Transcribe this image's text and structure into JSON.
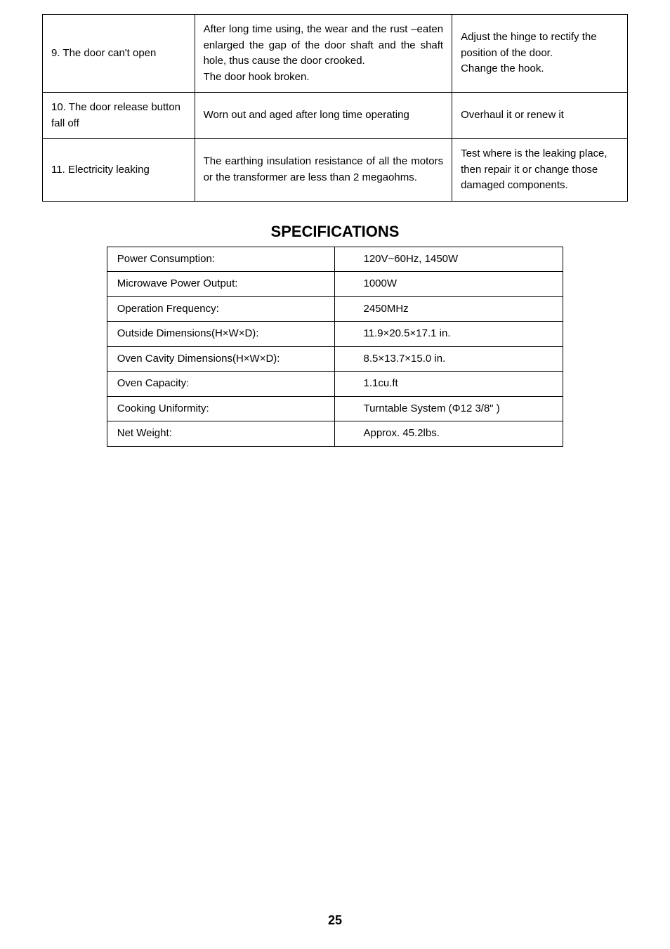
{
  "troubleshoot": {
    "rows": [
      {
        "problem": "9. The door can't open",
        "cause": "After long time using, the wear and the rust –eaten enlarged the gap of the door shaft and the shaft hole, thus cause the door crooked.\nThe door hook broken.",
        "solution": "Adjust the hinge to rectify the position of the door.\nChange the hook."
      },
      {
        "problem": "10. The door release button fall off",
        "cause": "Worn out and aged after long time operating",
        "solution": "Overhaul it or renew it"
      },
      {
        "problem": "11. Electricity leaking",
        "cause": "The earthing insulation resistance of all the motors or the transformer are less than 2 megaohms.",
        "solution": "Test where is the leaking place, then repair it or change those damaged components."
      }
    ]
  },
  "specs": {
    "title": "SPECIFICATIONS",
    "rows": [
      {
        "label": "Power Consumption:",
        "value": "120V~60Hz, 1450W"
      },
      {
        "label": "Microwave Power Output:",
        "value": "1000W"
      },
      {
        "label": "Operation Frequency:",
        "value": "2450MHz"
      },
      {
        "label": "Outside Dimensions(H×W×D):",
        "value": "11.9×20.5×17.1 in."
      },
      {
        "label": "Oven Cavity Dimensions(H×W×D):",
        "value": "8.5×13.7×15.0 in."
      },
      {
        "label": "Oven Capacity:",
        "value": "1.1cu.ft"
      },
      {
        "label": "Cooking Uniformity:",
        "value": "Turntable System (Φ12 3/8\" )"
      },
      {
        "label": "Net Weight:",
        "value": "Approx. 45.2lbs."
      }
    ]
  },
  "pageNumber": "25"
}
